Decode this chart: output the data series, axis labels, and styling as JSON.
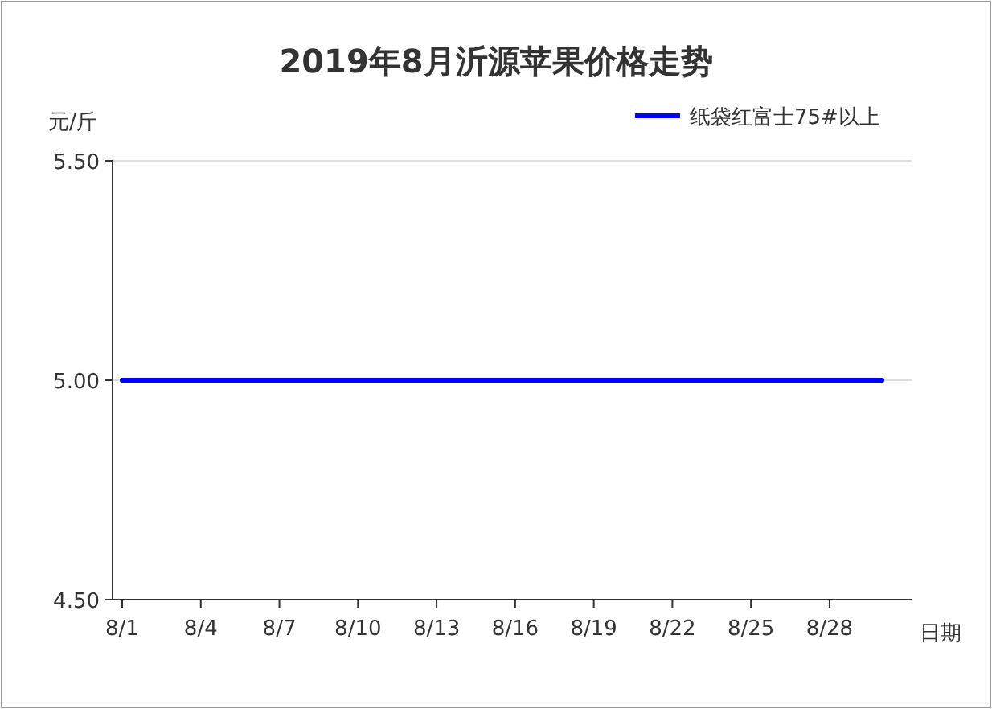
{
  "chart_data": {
    "type": "line",
    "title": "2019年8月沂源苹果价格走势",
    "xlabel": "日期",
    "ylabel": "元/斤",
    "categories": [
      "8/1",
      null,
      null,
      "8/4",
      null,
      null,
      "8/7",
      null,
      null,
      "8/10",
      null,
      null,
      "8/13",
      null,
      null,
      "8/16",
      null,
      null,
      "8/19",
      null,
      null,
      "8/22",
      null,
      null,
      "8/25",
      null,
      null,
      "8/28",
      null,
      null
    ],
    "series": [
      {
        "name": "纸袋红富士75#以上",
        "color": "#0000ff",
        "values": [
          5,
          5,
          5,
          5,
          5,
          5,
          5,
          5,
          5,
          5,
          5,
          5,
          5,
          5,
          5,
          5,
          5,
          5,
          5,
          5,
          5,
          5,
          5,
          5,
          5,
          5,
          5,
          5,
          5,
          5
        ]
      }
    ],
    "ylim": [
      4.5,
      5.5
    ],
    "yticks": [
      {
        "value": 4.5,
        "label": "4.50"
      },
      {
        "value": 5,
        "label": "5.00"
      },
      {
        "value": 5.5,
        "label": "5.50"
      }
    ],
    "grid": "y",
    "legend": "top right",
    "marker": "none",
    "line_style": "solid"
  }
}
